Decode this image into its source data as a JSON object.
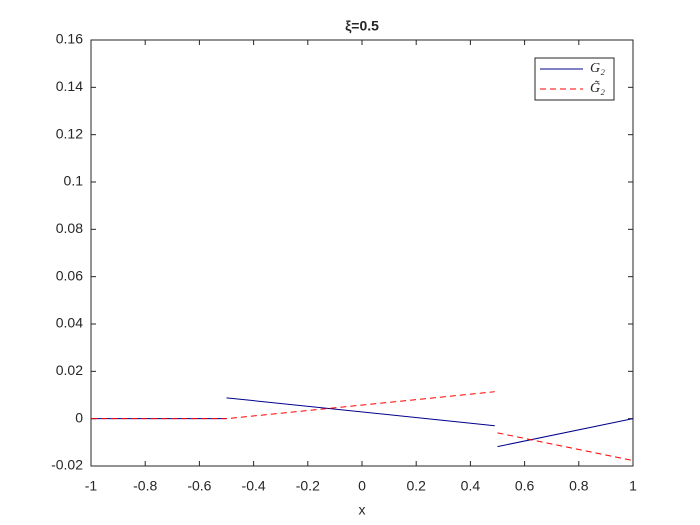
{
  "chart_data": {
    "type": "line",
    "title": "ξ=0.5",
    "xlabel": "x",
    "xlim": [
      -1,
      1
    ],
    "xticks": [
      -1,
      -0.8,
      -0.6,
      -0.4,
      -0.2,
      0,
      0.2,
      0.4,
      0.6,
      0.8,
      1
    ],
    "ylim": [
      -0.02,
      0.16
    ],
    "yticks": [
      -0.02,
      0,
      0.02,
      0.04,
      0.06,
      0.08,
      0.1,
      0.12,
      0.14,
      0.16
    ],
    "grid": false,
    "legend": "upper-right",
    "series": [
      {
        "name": "G₂",
        "color": "#00008b",
        "dash": "solid",
        "x": [
          -1,
          -0.5,
          -0.5,
          -0.5,
          0.49,
          0.49,
          0.5,
          1
        ],
        "values": [
          0,
          0,
          null,
          0.0088,
          -0.003,
          null,
          -0.0118,
          0
        ]
      },
      {
        "name": "G̃₂",
        "color": "#ff0000",
        "dash": "dashed",
        "x": [
          -1,
          -0.5,
          0.49,
          0.49,
          0.5,
          1
        ],
        "values": [
          0,
          0,
          0.0114,
          null,
          -0.006,
          -0.0177
        ]
      }
    ]
  }
}
